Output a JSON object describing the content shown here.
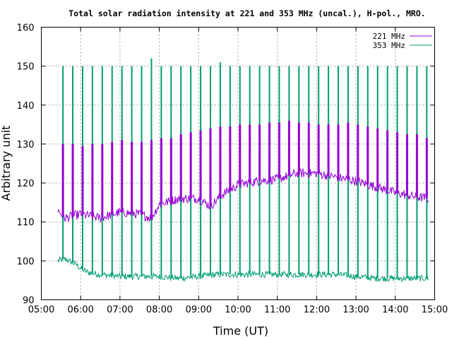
{
  "chart_data": {
    "type": "line",
    "title": "Total solar radiation intensity at 221 and 353 MHz (uncal.), H-pol., MRO.",
    "xlabel": "Time (UT)",
    "ylabel": "Arbitrary unit",
    "xlim": [
      5.0,
      15.0
    ],
    "ylim": [
      90,
      160
    ],
    "xticks": [
      5,
      6,
      7,
      8,
      9,
      10,
      11,
      12,
      13,
      14,
      15
    ],
    "xtick_labels": [
      "05:00",
      "06:00",
      "07:00",
      "08:00",
      "09:00",
      "10:00",
      "11:00",
      "12:00",
      "13:00",
      "14:00",
      "15:00"
    ],
    "yticks": [
      90,
      100,
      110,
      120,
      130,
      140,
      150,
      160
    ],
    "ytick_labels": [
      "90",
      "100",
      "110",
      "120",
      "130",
      "140",
      "150",
      "160"
    ],
    "grid": true,
    "legend_position": "top-right",
    "time_range": [
      5.42,
      14.85
    ],
    "spike_interval": 0.25,
    "spike_first": 5.55,
    "series": [
      {
        "name": "221 MHz",
        "color": "#9400d3",
        "baseline": {
          "x": [
            5.42,
            5.6,
            6.0,
            6.5,
            7.0,
            7.5,
            7.8,
            8.0,
            8.5,
            9.0,
            9.3,
            9.6,
            10.0,
            10.5,
            11.0,
            11.5,
            12.0,
            12.5,
            13.0,
            13.5,
            14.0,
            14.5,
            14.85
          ],
          "values": [
            113,
            111,
            112,
            111,
            112.5,
            112,
            111,
            114.5,
            116,
            116,
            114,
            117,
            119.5,
            120.5,
            121,
            122.5,
            122.5,
            121.5,
            120.5,
            119,
            117.5,
            116.5,
            116
          ]
        },
        "spike_peaks": [
          130,
          130,
          129.5,
          130,
          130,
          130.5,
          131,
          130.5,
          130.5,
          131,
          131.5,
          131.5,
          132.5,
          133,
          133.5,
          134,
          134.5,
          134.5,
          135,
          135,
          135,
          135.5,
          135.5,
          136,
          135.5,
          135.5,
          135,
          135,
          135,
          135.5,
          135,
          134.5,
          134,
          133.5,
          133,
          132.5,
          132.5,
          131.5
        ]
      },
      {
        "name": "353 MHz",
        "color": "#009e73",
        "baseline": {
          "x": [
            5.42,
            5.6,
            5.9,
            6.0,
            6.2,
            6.5,
            7.0,
            7.5,
            8.0,
            8.5,
            9.0,
            9.5,
            10.0,
            10.5,
            11.0,
            11.5,
            12.0,
            12.5,
            13.0,
            13.5,
            14.0,
            14.5,
            14.85
          ],
          "values": [
            100,
            100.5,
            99,
            98,
            97,
            96.5,
            96,
            96,
            96,
            95.5,
            96,
            96.5,
            96.5,
            96.5,
            96.5,
            96.5,
            96.5,
            96.5,
            96,
            95.5,
            95.5,
            95.5,
            95.5
          ]
        },
        "spike_peaks": [
          150,
          150,
          150,
          150,
          150,
          150,
          150,
          150,
          150,
          152,
          150,
          150,
          150,
          150,
          150,
          150,
          151,
          150,
          150,
          150,
          150,
          150,
          150,
          150,
          150,
          150,
          150,
          150,
          150,
          150,
          150,
          150,
          150,
          150,
          150,
          150,
          150,
          150
        ]
      }
    ]
  }
}
